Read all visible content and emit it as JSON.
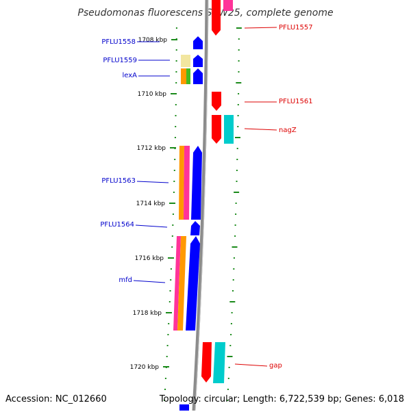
{
  "title": "Pseudomonas fluorescens SBW25, complete genome",
  "footer": {
    "accession": "Accession: NC_012660",
    "summary": "Topology: circular; Length: 6,722,539 bp; Genes: 6,018"
  },
  "colors": {
    "backbone": "#8c8c8c",
    "tick": "#1a8a1a",
    "left_label": "#0000cc",
    "right_label": "#dd0000",
    "forward": "#0000ff",
    "reverse": "#ff0000",
    "orange": "#ff9900",
    "magenta": "#ff3399",
    "green": "#44bb22",
    "cyan": "#00cccc",
    "pale_yellow": "#f2e6a0"
  },
  "scale_labels": [
    "1708 kbp",
    "1710 kbp",
    "1712 kbp",
    "1714 kbp",
    "1716 kbp",
    "1718 kbp",
    "1720 kbp"
  ],
  "left_genes": [
    "PFLU1558",
    "PFLU1559",
    "lexA",
    "PFLU1563",
    "PFLU1564",
    "mfd"
  ],
  "right_genes": [
    "PFLU1557",
    "PFLU1561",
    "nagZ",
    "gap"
  ]
}
